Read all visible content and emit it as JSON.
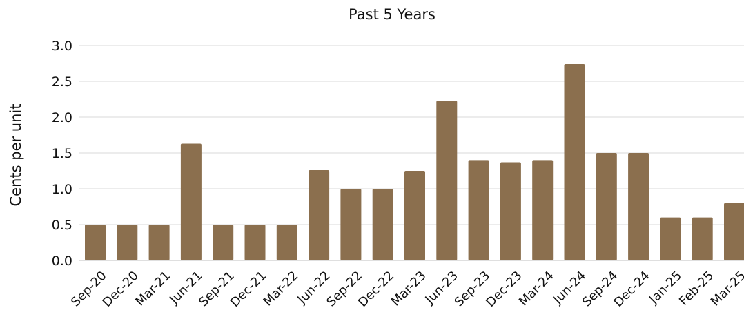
{
  "chart_data": {
    "type": "bar",
    "title": "Past 5 Years",
    "xlabel": "",
    "ylabel": "Cents per unit",
    "ylim": [
      0,
      3.0
    ],
    "yticks": [
      "0.0",
      "0.5",
      "1.0",
      "1.5",
      "2.0",
      "2.5",
      "3.0"
    ],
    "grid": true,
    "legend": "none",
    "bar_color": "#8B6F4E",
    "grid_color": "#D9D9D9",
    "categories": [
      "Sep-20",
      "Dec-20",
      "Mar-21",
      "Jun-21",
      "Sep-21",
      "Dec-21",
      "Mar-22",
      "Jun-22",
      "Sep-22",
      "Dec-22",
      "Mar-23",
      "Jun-23",
      "Sep-23",
      "Dec-23",
      "Mar-24",
      "Jun-24",
      "Sep-24",
      "Dec-24",
      "Jan-25",
      "Feb-25",
      "Mar-25"
    ],
    "values": [
      0.5,
      0.5,
      0.5,
      1.63,
      0.5,
      0.5,
      0.5,
      1.26,
      1.0,
      1.0,
      1.25,
      2.23,
      1.4,
      1.37,
      1.4,
      2.74,
      1.5,
      1.5,
      0.6,
      0.6,
      0.8
    ]
  }
}
